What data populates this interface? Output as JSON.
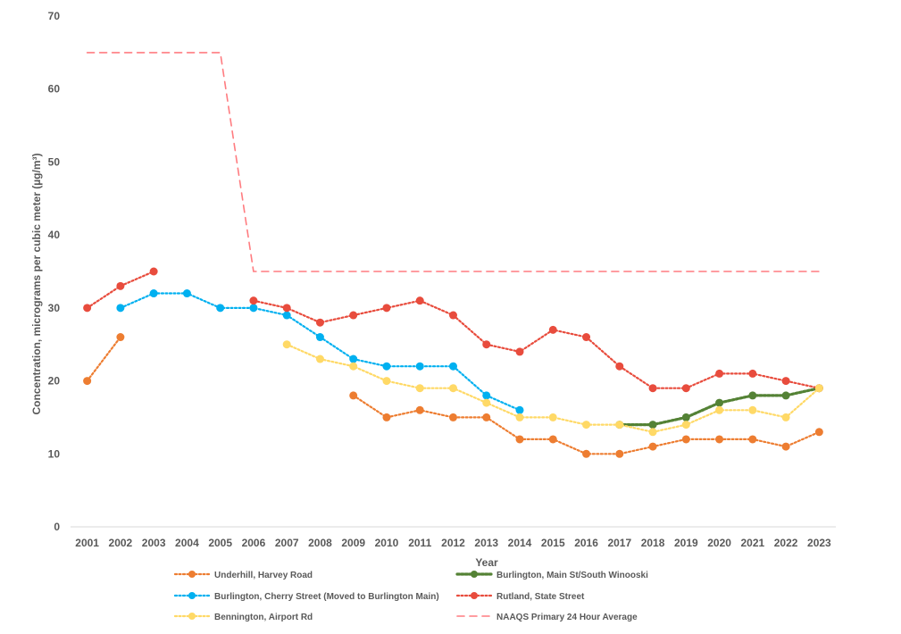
{
  "chart_data": {
    "type": "line",
    "title": "",
    "xlabel": "Year",
    "ylabel": "Concentration, micrograms per cubic meter (µg/m³)",
    "ylim": [
      0,
      70
    ],
    "y_ticks": [
      "0",
      "10",
      "20",
      "30",
      "40",
      "50",
      "60",
      "70"
    ],
    "categories": [
      "2001",
      "2002",
      "2003",
      "2004",
      "2005",
      "2006",
      "2007",
      "2008",
      "2009",
      "2010",
      "2011",
      "2012",
      "2013",
      "2014",
      "2015",
      "2016",
      "2017",
      "2018",
      "2019",
      "2020",
      "2021",
      "2022",
      "2023"
    ],
    "grid": false,
    "legend_position": "bottom",
    "series": [
      {
        "name": "Underhill, Harvey Road",
        "color": "#ED7D31",
        "line_style": "dotted",
        "values": [
          20,
          26,
          null,
          null,
          null,
          null,
          null,
          null,
          18,
          15,
          16,
          15,
          15,
          12,
          12,
          10,
          10,
          11,
          12,
          12,
          12,
          11,
          13
        ]
      },
      {
        "name": "Burlington, Main St/South Winooski",
        "color": "#548235",
        "line_style": "dotted-thick",
        "values": [
          null,
          null,
          null,
          null,
          null,
          null,
          null,
          null,
          null,
          null,
          null,
          null,
          null,
          null,
          null,
          null,
          14,
          14,
          15,
          17,
          18,
          18,
          19
        ]
      },
      {
        "name": "Burlington, Cherry Street (Moved to Burlington Main)",
        "color": "#00B0F0",
        "line_style": "dotted",
        "values": [
          null,
          30,
          32,
          32,
          30,
          30,
          29,
          26,
          23,
          22,
          22,
          22,
          18,
          16,
          null,
          null,
          null,
          null,
          null,
          null,
          null,
          null,
          null
        ]
      },
      {
        "name": "Rutland, State Street",
        "color": "#E84C3D",
        "line_style": "dotted",
        "values": [
          30,
          33,
          35,
          null,
          null,
          31,
          30,
          28,
          29,
          30,
          31,
          29,
          25,
          24,
          27,
          26,
          22,
          19,
          19,
          21,
          21,
          20,
          19
        ]
      },
      {
        "name": "Bennington, Airport Rd",
        "color": "#FFD966",
        "line_style": "dotted",
        "values": [
          null,
          null,
          null,
          null,
          null,
          null,
          25,
          23,
          22,
          20,
          19,
          19,
          17,
          15,
          15,
          14,
          14,
          13,
          14,
          16,
          16,
          15,
          19
        ]
      },
      {
        "name": "NAAQS Primary 24 Hour Average",
        "color": "#FF7C80",
        "line_style": "dashed",
        "markers": false,
        "values": [
          65,
          65,
          65,
          65,
          65,
          35,
          35,
          35,
          35,
          35,
          35,
          35,
          35,
          35,
          35,
          35,
          35,
          35,
          35,
          35,
          35,
          35,
          35
        ]
      }
    ]
  }
}
